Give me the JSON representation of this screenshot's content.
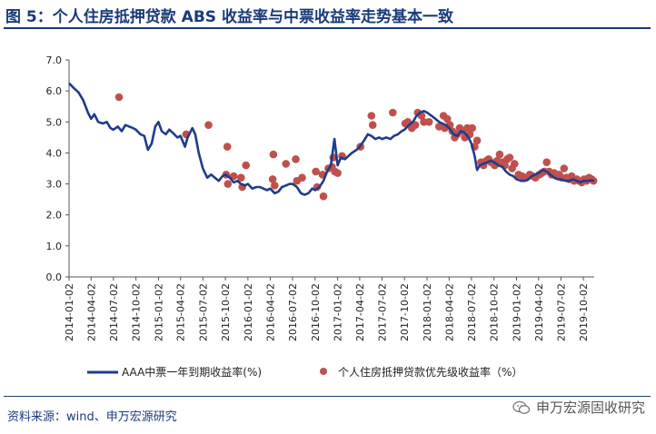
{
  "header": {
    "title": "图 5：个人住房抵押贷款 ABS 收益率与中票收益率走势基本一致"
  },
  "footer": {
    "source": "资料来源：wind、申万宏源研究",
    "watermark": "申万宏源固收研究",
    "watermark_icon": "wechat-icon"
  },
  "colors": {
    "title": "#1a3a7a",
    "line": "#1f3c8c",
    "dots": "#c0504d"
  },
  "chart_data": {
    "type": "line",
    "ylim": [
      0,
      7
    ],
    "yticks": [
      "0.0",
      "1.0",
      "2.0",
      "3.0",
      "4.0",
      "5.0",
      "6.0",
      "7.0"
    ],
    "xrange": [
      "2014-01-02",
      "2019-11-15"
    ],
    "xticks": [
      "2014-01-02",
      "2014-04-02",
      "2014-07-02",
      "2014-10-02",
      "2015-01-02",
      "2015-04-02",
      "2015-07-02",
      "2015-10-02",
      "2016-01-02",
      "2016-04-02",
      "2016-07-02",
      "2016-10-02",
      "2017-01-02",
      "2017-04-02",
      "2017-07-02",
      "2017-10-02",
      "2018-01-02",
      "2018-04-02",
      "2018-07-02",
      "2018-10-02",
      "2019-01-02",
      "2019-04-02",
      "2019-07-02",
      "2019-10-02"
    ],
    "legend_position": "bottom",
    "series": [
      {
        "name": "AAA中票一年到期收益率(%)",
        "kind": "line",
        "points": [
          [
            "2014-01-02",
            6.25
          ],
          [
            "2014-01-20",
            6.1
          ],
          [
            "2014-02-10",
            5.95
          ],
          [
            "2014-03-01",
            5.7
          ],
          [
            "2014-03-20",
            5.3
          ],
          [
            "2014-04-02",
            5.1
          ],
          [
            "2014-04-15",
            5.25
          ],
          [
            "2014-05-01",
            5.0
          ],
          [
            "2014-05-20",
            4.95
          ],
          [
            "2014-06-05",
            5.0
          ],
          [
            "2014-06-20",
            4.8
          ],
          [
            "2014-07-02",
            4.75
          ],
          [
            "2014-07-20",
            4.85
          ],
          [
            "2014-08-05",
            4.7
          ],
          [
            "2014-08-20",
            4.9
          ],
          [
            "2014-09-05",
            4.85
          ],
          [
            "2014-09-20",
            4.8
          ],
          [
            "2014-10-02",
            4.75
          ],
          [
            "2014-10-20",
            4.6
          ],
          [
            "2014-11-05",
            4.55
          ],
          [
            "2014-11-20",
            4.1
          ],
          [
            "2014-12-05",
            4.3
          ],
          [
            "2014-12-20",
            4.85
          ],
          [
            "2015-01-02",
            5.0
          ],
          [
            "2015-01-15",
            4.7
          ],
          [
            "2015-02-01",
            4.6
          ],
          [
            "2015-02-15",
            4.75
          ],
          [
            "2015-03-01",
            4.65
          ],
          [
            "2015-03-20",
            4.5
          ],
          [
            "2015-04-02",
            4.55
          ],
          [
            "2015-04-20",
            4.2
          ],
          [
            "2015-05-01",
            4.5
          ],
          [
            "2015-05-20",
            4.8
          ],
          [
            "2015-06-01",
            4.6
          ],
          [
            "2015-06-15",
            4.0
          ],
          [
            "2015-07-02",
            3.5
          ],
          [
            "2015-07-20",
            3.2
          ],
          [
            "2015-08-05",
            3.3
          ],
          [
            "2015-08-20",
            3.2
          ],
          [
            "2015-09-05",
            3.1
          ],
          [
            "2015-09-20",
            3.25
          ],
          [
            "2015-10-02",
            3.3
          ],
          [
            "2015-10-20",
            3.2
          ],
          [
            "2015-11-05",
            3.05
          ],
          [
            "2015-11-20",
            3.1
          ],
          [
            "2015-12-05",
            3.0
          ],
          [
            "2015-12-20",
            2.95
          ],
          [
            "2016-01-02",
            3.0
          ],
          [
            "2016-01-20",
            2.85
          ],
          [
            "2016-02-05",
            2.9
          ],
          [
            "2016-02-20",
            2.9
          ],
          [
            "2016-03-05",
            2.85
          ],
          [
            "2016-03-20",
            2.8
          ],
          [
            "2016-04-02",
            2.85
          ],
          [
            "2016-04-20",
            2.7
          ],
          [
            "2016-05-05",
            2.75
          ],
          [
            "2016-05-20",
            2.9
          ],
          [
            "2016-06-05",
            2.95
          ],
          [
            "2016-06-20",
            3.0
          ],
          [
            "2016-07-02",
            3.0
          ],
          [
            "2016-07-20",
            2.9
          ],
          [
            "2016-08-05",
            2.7
          ],
          [
            "2016-08-20",
            2.65
          ],
          [
            "2016-09-05",
            2.7
          ],
          [
            "2016-09-20",
            2.85
          ],
          [
            "2016-10-02",
            2.8
          ],
          [
            "2016-10-20",
            2.9
          ],
          [
            "2016-11-05",
            3.1
          ],
          [
            "2016-11-20",
            3.4
          ],
          [
            "2016-12-05",
            3.6
          ],
          [
            "2016-12-20",
            4.45
          ],
          [
            "2017-01-02",
            3.6
          ],
          [
            "2017-01-15",
            3.85
          ],
          [
            "2017-02-01",
            3.8
          ],
          [
            "2017-02-15",
            3.9
          ],
          [
            "2017-03-01",
            4.0
          ],
          [
            "2017-03-20",
            4.1
          ],
          [
            "2017-04-02",
            4.2
          ],
          [
            "2017-04-20",
            4.4
          ],
          [
            "2017-05-05",
            4.6
          ],
          [
            "2017-05-20",
            4.55
          ],
          [
            "2017-06-05",
            4.45
          ],
          [
            "2017-06-20",
            4.5
          ],
          [
            "2017-07-02",
            4.45
          ],
          [
            "2017-07-20",
            4.5
          ],
          [
            "2017-08-05",
            4.45
          ],
          [
            "2017-08-20",
            4.55
          ],
          [
            "2017-09-05",
            4.6
          ],
          [
            "2017-09-20",
            4.7
          ],
          [
            "2017-10-02",
            4.75
          ],
          [
            "2017-10-20",
            4.9
          ],
          [
            "2017-11-05",
            5.0
          ],
          [
            "2017-11-20",
            5.2
          ],
          [
            "2017-12-05",
            5.3
          ],
          [
            "2017-12-20",
            5.35
          ],
          [
            "2018-01-02",
            5.3
          ],
          [
            "2018-01-20",
            5.2
          ],
          [
            "2018-02-05",
            5.1
          ],
          [
            "2018-02-20",
            5.0
          ],
          [
            "2018-03-05",
            4.95
          ],
          [
            "2018-03-20",
            4.9
          ],
          [
            "2018-04-02",
            4.8
          ],
          [
            "2018-04-20",
            4.6
          ],
          [
            "2018-05-05",
            4.55
          ],
          [
            "2018-05-20",
            4.7
          ],
          [
            "2018-06-05",
            4.65
          ],
          [
            "2018-06-20",
            4.5
          ],
          [
            "2018-07-02",
            4.3
          ],
          [
            "2018-07-15",
            3.9
          ],
          [
            "2018-07-25",
            3.45
          ],
          [
            "2018-08-05",
            3.6
          ],
          [
            "2018-08-20",
            3.65
          ],
          [
            "2018-09-05",
            3.7
          ],
          [
            "2018-09-20",
            3.75
          ],
          [
            "2018-10-02",
            3.7
          ],
          [
            "2018-10-20",
            3.6
          ],
          [
            "2018-11-05",
            3.55
          ],
          [
            "2018-11-20",
            3.4
          ],
          [
            "2018-12-05",
            3.3
          ],
          [
            "2018-12-20",
            3.25
          ],
          [
            "2019-01-02",
            3.15
          ],
          [
            "2019-01-20",
            3.1
          ],
          [
            "2019-02-05",
            3.1
          ],
          [
            "2019-02-20",
            3.15
          ],
          [
            "2019-03-05",
            3.25
          ],
          [
            "2019-03-20",
            3.3
          ],
          [
            "2019-04-02",
            3.35
          ],
          [
            "2019-04-20",
            3.45
          ],
          [
            "2019-05-05",
            3.4
          ],
          [
            "2019-05-20",
            3.3
          ],
          [
            "2019-06-05",
            3.2
          ],
          [
            "2019-06-20",
            3.15
          ],
          [
            "2019-07-02",
            3.15
          ],
          [
            "2019-07-20",
            3.1
          ],
          [
            "2019-08-05",
            3.1
          ],
          [
            "2019-08-20",
            3.15
          ],
          [
            "2019-09-05",
            3.1
          ],
          [
            "2019-09-20",
            3.05
          ],
          [
            "2019-10-02",
            3.1
          ],
          [
            "2019-10-20",
            3.1
          ],
          [
            "2019-11-05",
            3.12
          ],
          [
            "2019-11-15",
            3.1
          ]
        ]
      },
      {
        "name": "个人住房抵押贷款优先级收益率（%）",
        "kind": "scatter",
        "points": [
          [
            "2014-07-25",
            5.8
          ],
          [
            "2015-04-25",
            4.6
          ],
          [
            "2015-07-25",
            4.9
          ],
          [
            "2015-10-10",
            4.2
          ],
          [
            "2015-10-05",
            3.3
          ],
          [
            "2015-10-12",
            3.0
          ],
          [
            "2015-11-05",
            3.25
          ],
          [
            "2015-12-05",
            3.2
          ],
          [
            "2015-12-10",
            2.9
          ],
          [
            "2015-12-25",
            3.6
          ],
          [
            "2016-04-15",
            3.95
          ],
          [
            "2016-04-12",
            3.15
          ],
          [
            "2016-04-20",
            2.95
          ],
          [
            "2016-06-05",
            3.65
          ],
          [
            "2016-07-15",
            3.8
          ],
          [
            "2016-07-20",
            3.1
          ],
          [
            "2016-08-10",
            3.2
          ],
          [
            "2016-10-10",
            2.9
          ],
          [
            "2016-10-05",
            3.4
          ],
          [
            "2016-11-01",
            3.3
          ],
          [
            "2016-11-05",
            2.6
          ],
          [
            "2016-11-25",
            3.5
          ],
          [
            "2016-12-10",
            3.55
          ],
          [
            "2016-12-15",
            3.85
          ],
          [
            "2016-12-22",
            3.4
          ],
          [
            "2017-01-02",
            3.35
          ],
          [
            "2017-01-20",
            3.9
          ],
          [
            "2017-04-05",
            4.2
          ],
          [
            "2017-05-20",
            5.2
          ],
          [
            "2017-05-25",
            4.9
          ],
          [
            "2017-08-15",
            5.3
          ],
          [
            "2017-10-05",
            4.95
          ],
          [
            "2017-10-15",
            5.0
          ],
          [
            "2017-11-01",
            4.8
          ],
          [
            "2017-11-15",
            4.9
          ],
          [
            "2017-11-25",
            5.3
          ],
          [
            "2017-12-10",
            5.2
          ],
          [
            "2017-12-20",
            5.0
          ],
          [
            "2018-01-10",
            5.0
          ],
          [
            "2018-02-20",
            4.85
          ],
          [
            "2018-03-10",
            5.2
          ],
          [
            "2018-03-15",
            4.8
          ],
          [
            "2018-03-25",
            5.1
          ],
          [
            "2018-04-05",
            4.9
          ],
          [
            "2018-04-15",
            4.7
          ],
          [
            "2018-04-25",
            4.5
          ],
          [
            "2018-05-05",
            4.6
          ],
          [
            "2018-05-15",
            4.8
          ],
          [
            "2018-05-25",
            4.7
          ],
          [
            "2018-06-05",
            4.5
          ],
          [
            "2018-06-15",
            4.8
          ],
          [
            "2018-06-25",
            4.6
          ],
          [
            "2018-07-05",
            4.8
          ],
          [
            "2018-07-15",
            4.2
          ],
          [
            "2018-07-25",
            4.4
          ],
          [
            "2018-08-10",
            3.7
          ],
          [
            "2018-08-20",
            3.6
          ],
          [
            "2018-09-01",
            3.75
          ],
          [
            "2018-09-10",
            3.8
          ],
          [
            "2018-09-20",
            3.7
          ],
          [
            "2018-10-05",
            3.6
          ],
          [
            "2018-10-15",
            3.75
          ],
          [
            "2018-10-25",
            3.95
          ],
          [
            "2018-11-05",
            3.7
          ],
          [
            "2018-11-15",
            3.6
          ],
          [
            "2018-11-25",
            3.8
          ],
          [
            "2018-12-05",
            3.85
          ],
          [
            "2018-12-15",
            3.5
          ],
          [
            "2018-12-25",
            3.65
          ],
          [
            "2019-01-10",
            3.3
          ],
          [
            "2019-01-25",
            3.25
          ],
          [
            "2019-02-10",
            3.2
          ],
          [
            "2019-02-25",
            3.3
          ],
          [
            "2019-03-10",
            3.25
          ],
          [
            "2019-03-20",
            3.2
          ],
          [
            "2019-04-05",
            3.3
          ],
          [
            "2019-04-15",
            3.35
          ],
          [
            "2019-04-25",
            3.4
          ],
          [
            "2019-05-05",
            3.7
          ],
          [
            "2019-05-15",
            3.4
          ],
          [
            "2019-05-25",
            3.3
          ],
          [
            "2019-06-05",
            3.35
          ],
          [
            "2019-06-15",
            3.25
          ],
          [
            "2019-06-25",
            3.3
          ],
          [
            "2019-07-05",
            3.2
          ],
          [
            "2019-07-15",
            3.5
          ],
          [
            "2019-07-25",
            3.2
          ],
          [
            "2019-08-05",
            3.15
          ],
          [
            "2019-08-15",
            3.25
          ],
          [
            "2019-08-25",
            3.1
          ],
          [
            "2019-09-05",
            3.15
          ],
          [
            "2019-09-15",
            3.1
          ],
          [
            "2019-09-25",
            3.05
          ],
          [
            "2019-10-05",
            3.15
          ],
          [
            "2019-10-15",
            3.1
          ],
          [
            "2019-10-25",
            3.2
          ],
          [
            "2019-11-05",
            3.15
          ],
          [
            "2019-11-12",
            3.1
          ]
        ]
      }
    ]
  }
}
